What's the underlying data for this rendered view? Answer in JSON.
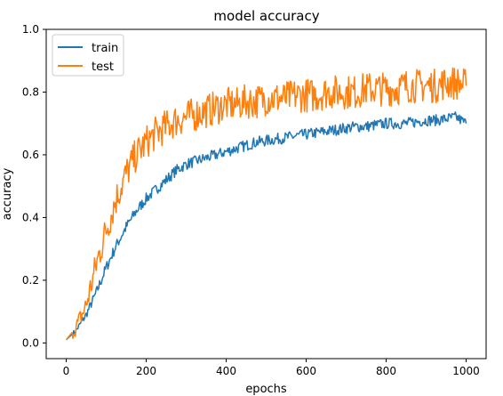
{
  "chart_data": {
    "type": "line",
    "title": "model accuracy",
    "xlabel": "epochs",
    "ylabel": "accuracy",
    "xlim": [
      -50,
      1050
    ],
    "ylim": [
      -0.05,
      1.0
    ],
    "xticks": [
      0,
      200,
      400,
      600,
      800,
      1000
    ],
    "yticks": [
      0.0,
      0.2,
      0.4,
      0.6,
      0.8,
      1.0
    ],
    "xtick_labels": [
      "0",
      "200",
      "400",
      "600",
      "800",
      "1000"
    ],
    "ytick_labels": [
      "0.0",
      "0.2",
      "0.4",
      "0.6",
      "0.8",
      "1.0"
    ],
    "legend_position": "top-left",
    "grid": false,
    "series": [
      {
        "name": "train",
        "color": "#1f77b4",
        "x": [
          0,
          25,
          50,
          75,
          100,
          125,
          150,
          175,
          200,
          225,
          250,
          275,
          300,
          325,
          350,
          375,
          400,
          425,
          450,
          475,
          500,
          525,
          550,
          575,
          600,
          625,
          650,
          675,
          700,
          725,
          750,
          775,
          800,
          825,
          850,
          875,
          900,
          925,
          950,
          975,
          1000
        ],
        "y": [
          0.01,
          0.04,
          0.09,
          0.16,
          0.24,
          0.31,
          0.37,
          0.42,
          0.46,
          0.49,
          0.52,
          0.55,
          0.57,
          0.58,
          0.59,
          0.6,
          0.61,
          0.62,
          0.63,
          0.64,
          0.645,
          0.65,
          0.655,
          0.66,
          0.665,
          0.67,
          0.675,
          0.68,
          0.685,
          0.69,
          0.69,
          0.695,
          0.7,
          0.7,
          0.7,
          0.705,
          0.71,
          0.71,
          0.715,
          0.72,
          0.7
        ]
      },
      {
        "name": "test",
        "color": "#ff7f0e",
        "x": [
          0,
          25,
          50,
          75,
          100,
          125,
          150,
          175,
          200,
          225,
          250,
          275,
          300,
          325,
          350,
          375,
          400,
          425,
          450,
          475,
          500,
          525,
          550,
          575,
          600,
          625,
          650,
          675,
          700,
          725,
          750,
          775,
          800,
          825,
          850,
          875,
          900,
          925,
          950,
          975,
          1000
        ],
        "y": [
          0.01,
          0.05,
          0.12,
          0.25,
          0.36,
          0.46,
          0.54,
          0.6,
          0.64,
          0.67,
          0.69,
          0.71,
          0.72,
          0.73,
          0.74,
          0.75,
          0.76,
          0.76,
          0.77,
          0.77,
          0.78,
          0.78,
          0.78,
          0.79,
          0.79,
          0.79,
          0.8,
          0.8,
          0.8,
          0.8,
          0.81,
          0.81,
          0.81,
          0.81,
          0.82,
          0.82,
          0.82,
          0.82,
          0.83,
          0.83,
          0.82
        ]
      }
    ]
  }
}
